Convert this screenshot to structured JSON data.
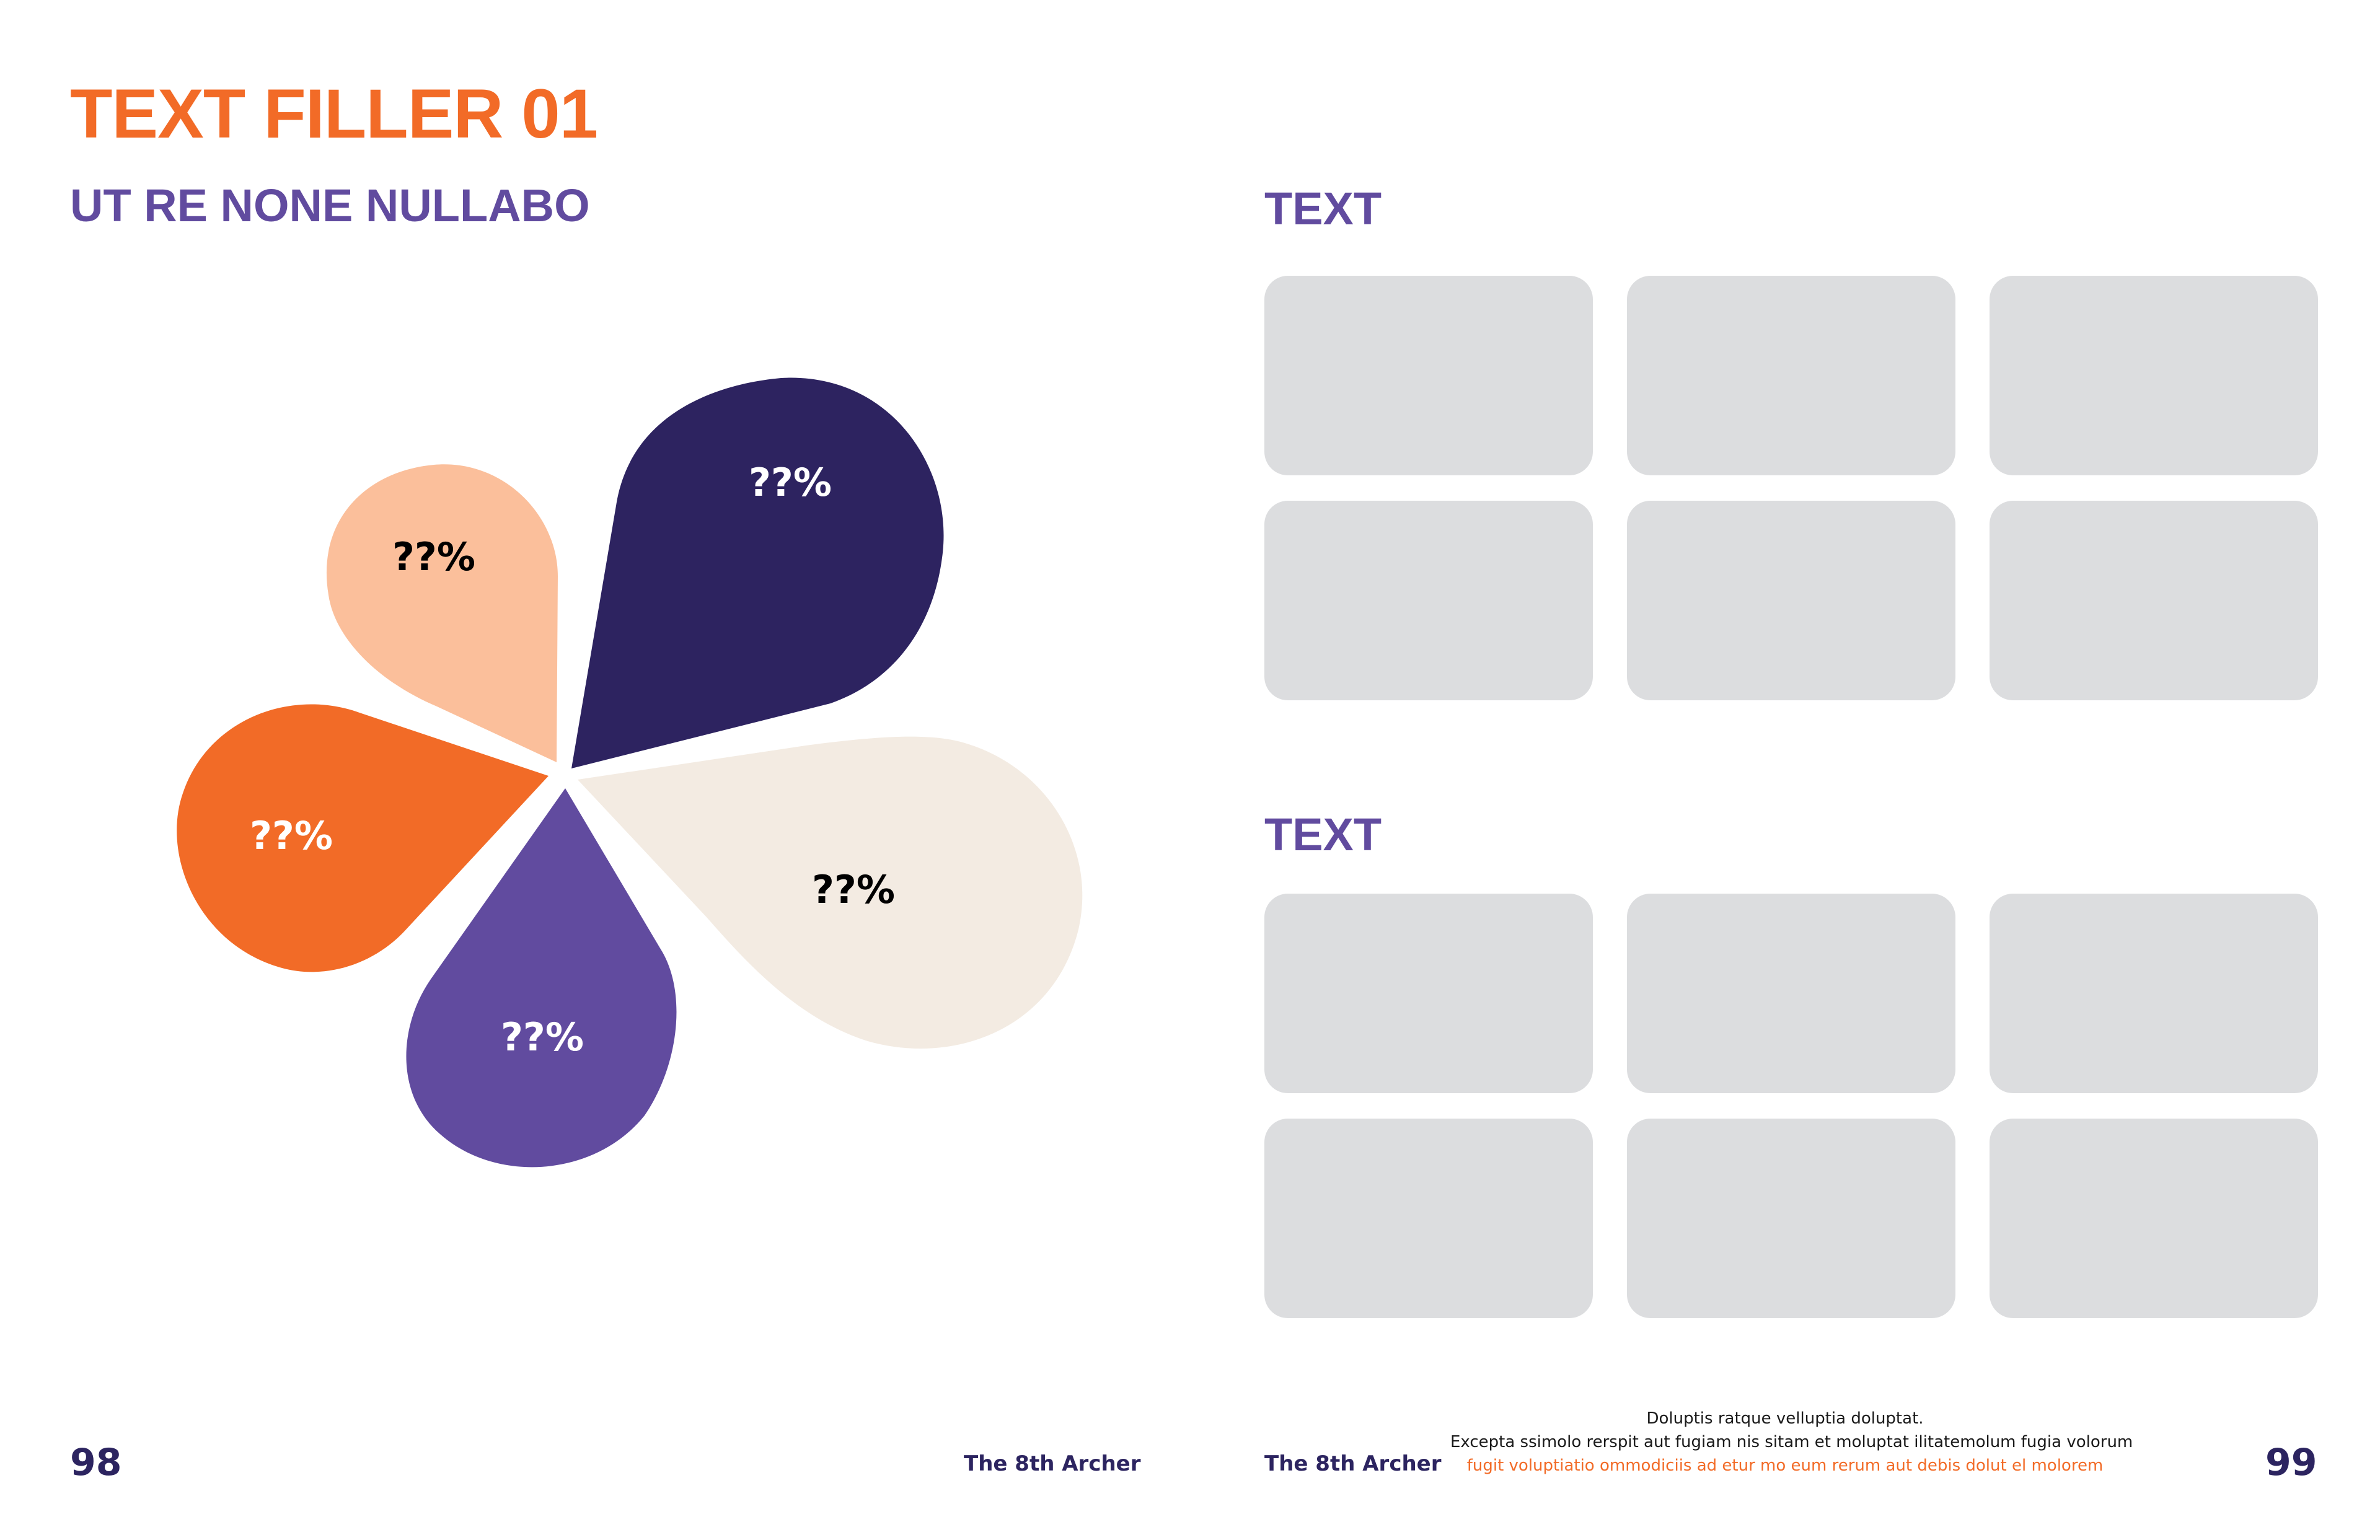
{
  "page_left": {
    "title": "TEXT FILLER 01",
    "subtitle": "UT RE NONE NULLABO",
    "page_number": "98",
    "brand": "The 8th Archer"
  },
  "flower_chart": {
    "petals": [
      {
        "label": "??%",
        "color": "#2d2360",
        "text_color": "#ffffff"
      },
      {
        "label": "??%",
        "color": "#f3ebe2",
        "text_color": "#000000"
      },
      {
        "label": "??%",
        "color": "#614b9f",
        "text_color": "#ffffff"
      },
      {
        "label": "??%",
        "color": "#f26b27",
        "text_color": "#ffffff"
      },
      {
        "label": "??%",
        "color": "#fbbf9b",
        "text_color": "#000000"
      }
    ]
  },
  "page_right": {
    "section1_heading": "TEXT",
    "section2_heading": "TEXT",
    "card_color": "#dcdddf",
    "brand": "The 8th Archer",
    "page_number": "99",
    "footer": {
      "line1": "Doluptis ratque velluptia doluptat.",
      "line2": "Excepta ssimolo rerspit aut fugiam nis sitam et moluptat ilitatemolum fugia volorum",
      "line3": "fugit voluptiatio ommodiciis ad etur mo eum rerum aut debis dolut el molorem"
    }
  },
  "colors": {
    "orange": "#f26b27",
    "purple": "#614b9f",
    "navy": "#2c2460"
  }
}
